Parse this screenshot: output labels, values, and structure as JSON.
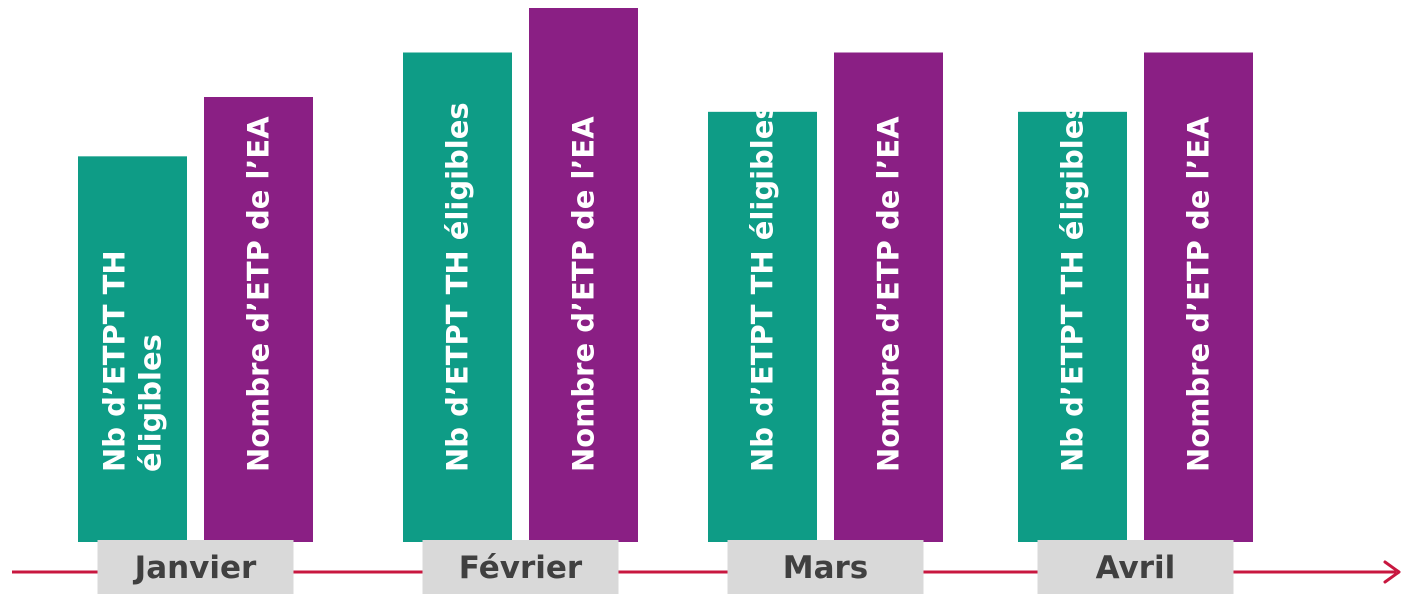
{
  "colors": {
    "series_1": "#0e9c86",
    "series_2": "#8a1f84",
    "axis": "#c8173f",
    "month_box": "#d9d9d9",
    "month_text": "#404040",
    "bar_text": "#ffffff"
  },
  "chart_data": {
    "type": "bar",
    "categories": [
      "Janvier",
      "Février",
      "Mars",
      "Avril"
    ],
    "series": [
      {
        "values": [
          52,
          66,
          58,
          58
        ],
        "labels": [
          [
            "Nb d’ETPT TH",
            "éligibles"
          ],
          [
            "Nb d’ETPT TH éligibles"
          ],
          [
            "Nb d’ETPT TH éligibles"
          ],
          [
            "Nb d’ETPT TH éligibles"
          ]
        ]
      },
      {
        "values": [
          60,
          72,
          66,
          66
        ],
        "labels": [
          [
            "Nombre d’ETP de l’EA"
          ],
          [
            "Nombre d’ETP de l’EA"
          ],
          [
            "Nombre d’ETP de l’EA"
          ],
          [
            "Nombre d’ETP de l’EA"
          ]
        ]
      }
    ],
    "ylim": [
      0,
      72
    ],
    "grid": false,
    "legend": "none"
  }
}
